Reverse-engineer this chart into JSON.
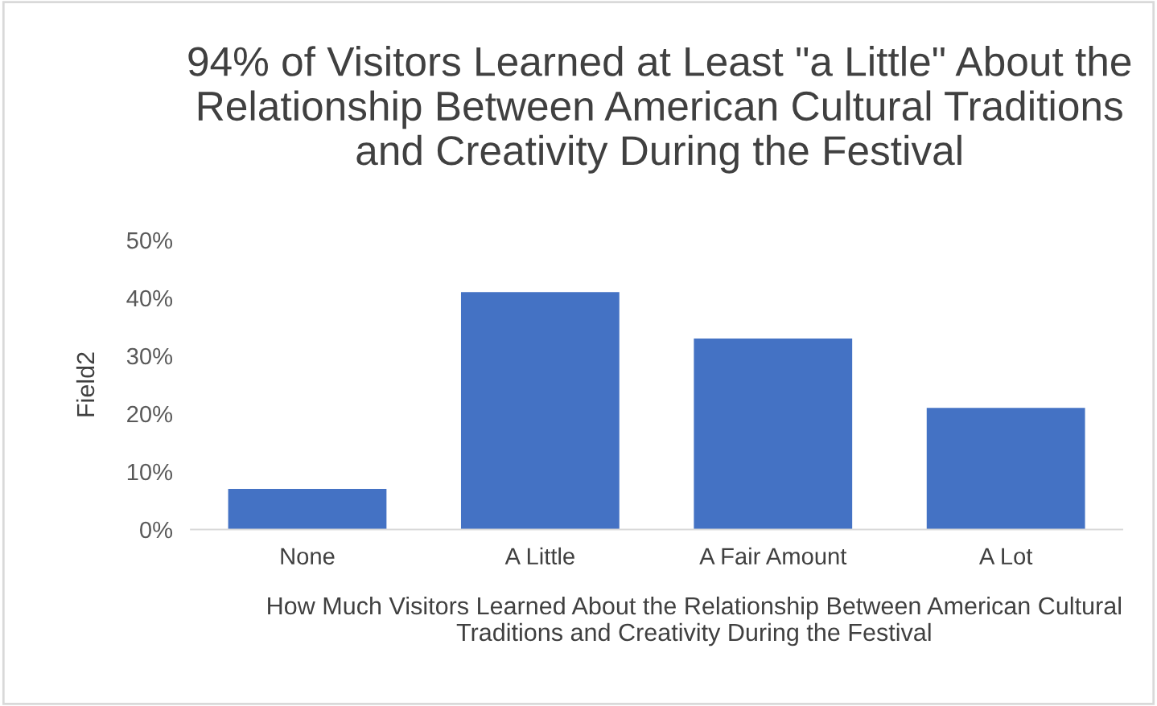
{
  "chart_data": {
    "type": "bar",
    "title": "94% of Visitors Learned at Least \"a Little\" About the Relationship Between American Cultural Traditions and Creativity During the Festival",
    "xlabel": "How Much Visitors Learned About the Relationship Between American Cultural Traditions and Creativity During the Festival",
    "ylabel": "Field2",
    "categories": [
      "None",
      "A Little",
      "A Fair Amount",
      "A Lot"
    ],
    "values": [
      0.07,
      0.41,
      0.33,
      0.21
    ],
    "color": "#4472c4",
    "ylim": [
      0,
      0.5
    ],
    "yticks": [
      {
        "value": 0,
        "label": "0%"
      },
      {
        "value": 0.1,
        "label": "10%"
      },
      {
        "value": 0.2,
        "label": "20%"
      },
      {
        "value": 0.3,
        "label": "30%"
      },
      {
        "value": 0.4,
        "label": "40%"
      },
      {
        "value": 0.5,
        "label": "50%"
      }
    ],
    "grid": false,
    "legend": false
  }
}
